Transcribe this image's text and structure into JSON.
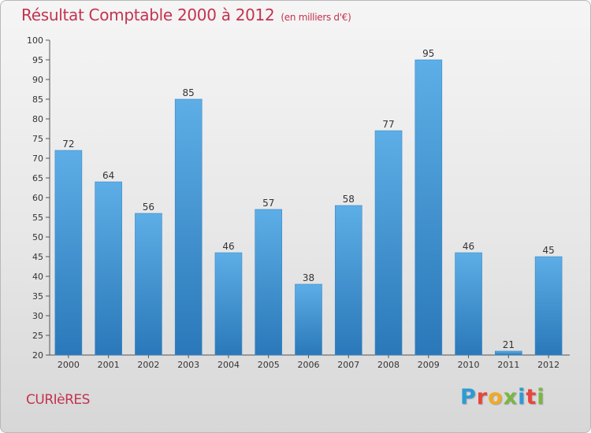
{
  "header": {
    "title": "Résultat Comptable 2000 à 2012",
    "subtitle": "(en milliers d'€)"
  },
  "footer": {
    "commune": "CURIèRES",
    "logo_letters": [
      "P",
      "r",
      "o",
      "x",
      "i",
      "t",
      "i"
    ],
    "logo_colors": [
      "#2b9bd6",
      "#e8453c",
      "#f1a924",
      "#7ab642",
      "#2b9bd6",
      "#e8453c",
      "#7ab642"
    ]
  },
  "chart_data": {
    "type": "bar",
    "title": "Résultat Comptable 2000 à 2012",
    "subtitle": "(en milliers d'€)",
    "categories": [
      "2000",
      "2001",
      "2002",
      "2003",
      "2004",
      "2005",
      "2006",
      "2007",
      "2008",
      "2009",
      "2010",
      "2011",
      "2012"
    ],
    "values": [
      72,
      64,
      56,
      85,
      46,
      57,
      38,
      58,
      77,
      95,
      46,
      21,
      45
    ],
    "ylim": [
      20,
      100
    ],
    "yticks": [
      20,
      25,
      30,
      35,
      40,
      45,
      50,
      55,
      60,
      65,
      70,
      75,
      80,
      85,
      90,
      95,
      100
    ],
    "grid": false,
    "bar_color_top": "#5daee6",
    "bar_color_bottom": "#2a78b9",
    "text_color": "#333333"
  }
}
